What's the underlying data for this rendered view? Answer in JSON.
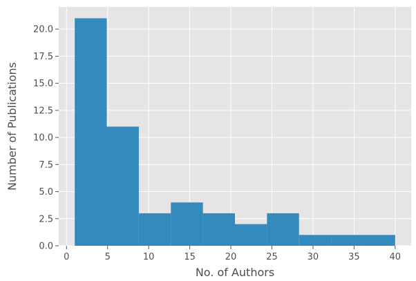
{
  "chart_data": {
    "type": "bar",
    "histogram": true,
    "bins": [
      {
        "x0": 1.0,
        "x1": 4.9,
        "value": 21
      },
      {
        "x0": 4.9,
        "x1": 8.8,
        "value": 11
      },
      {
        "x0": 8.8,
        "x1": 12.7,
        "value": 3
      },
      {
        "x0": 12.7,
        "x1": 16.6,
        "value": 4
      },
      {
        "x0": 16.6,
        "x1": 20.5,
        "value": 3
      },
      {
        "x0": 20.5,
        "x1": 24.4,
        "value": 2
      },
      {
        "x0": 24.4,
        "x1": 28.3,
        "value": 3
      },
      {
        "x0": 28.3,
        "x1": 32.2,
        "value": 1
      },
      {
        "x0": 32.2,
        "x1": 36.1,
        "value": 1
      },
      {
        "x0": 36.1,
        "x1": 40.0,
        "value": 1
      }
    ],
    "xlabel": "No. of Authors",
    "ylabel": "Number of Publications",
    "xlim": [
      -0.95,
      41.95
    ],
    "ylim": [
      0,
      22.05
    ],
    "x_ticks": [
      "0",
      "5",
      "10",
      "15",
      "20",
      "25",
      "30",
      "35",
      "40"
    ],
    "y_ticks": [
      "0.0",
      "2.5",
      "5.0",
      "7.5",
      "10.0",
      "12.5",
      "15.0",
      "17.5",
      "20.0"
    ],
    "grid": true,
    "bar_color": "#348abd",
    "background_color": "#e5e5e5",
    "grid_color": "#ffffff"
  }
}
